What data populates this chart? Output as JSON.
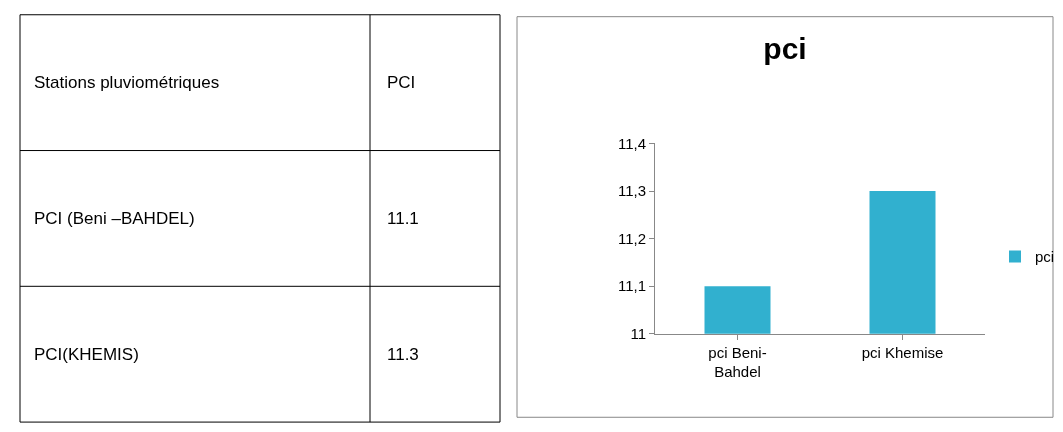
{
  "chart_data": {
    "type": "bar",
    "title": "pci",
    "categories": [
      "pci Beni-Bahdel",
      "pci Khemise"
    ],
    "series": [
      {
        "name": "pci",
        "color": "#31b0cf",
        "values": [
          11.1,
          11.3
        ]
      }
    ],
    "ylim": [
      11,
      11.4
    ],
    "yticks": [
      {
        "value": 11,
        "label": "11"
      },
      {
        "value": 11.1,
        "label": "11,1"
      },
      {
        "value": 11.2,
        "label": "11,2"
      },
      {
        "value": 11.3,
        "label": "11,3"
      },
      {
        "value": 11.4,
        "label": "11,4"
      }
    ],
    "grid": false,
    "legend": "right",
    "annotations": [
      "Stations pluviométriques",
      "PCI",
      "PCI (Beni –BAHDEL)",
      "11.1",
      "PCI(KHEMIS)",
      "11.3"
    ]
  }
}
